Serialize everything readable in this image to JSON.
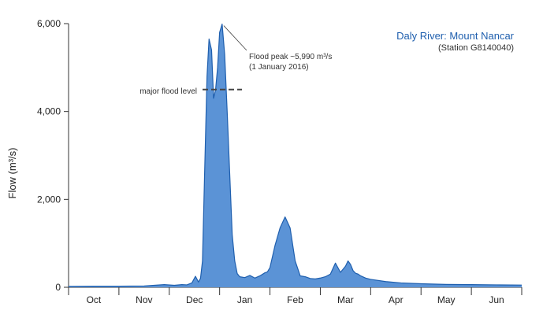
{
  "colors": {
    "fill": "#5b93d6",
    "line": "#1f5fae",
    "axis": "#333333",
    "title": "#1f5fae",
    "annotation": "#333333"
  },
  "chart_data": {
    "type": "area",
    "title": "Daly River: Mount Nancar",
    "subtitle": "(Station G8140040)",
    "xlabel": "",
    "ylabel": "Flow (m³/s)",
    "ylim": [
      0,
      6000
    ],
    "yticks": [
      0,
      2000,
      4000,
      6000
    ],
    "ytick_labels": [
      "0",
      "2,000",
      "4,000",
      "6,000"
    ],
    "xlim": [
      0,
      9
    ],
    "months": [
      "Oct",
      "Nov",
      "Dec",
      "Jan",
      "Feb",
      "Mar",
      "Apr",
      "May",
      "Jun"
    ],
    "grid": false,
    "flood_level": {
      "value": 4500,
      "label": "major flood level"
    },
    "peak_annotation": {
      "x": 3.05,
      "value": 5990,
      "line1": "Flood peak ~5,990 m³/s",
      "line2": "(1 January 2016)"
    },
    "series": [
      {
        "name": "Flow",
        "x": [
          0,
          0.5,
          1,
          1.5,
          1.9,
          2.1,
          2.25,
          2.35,
          2.45,
          2.52,
          2.58,
          2.62,
          2.66,
          2.7,
          2.75,
          2.79,
          2.84,
          2.88,
          2.92,
          2.96,
          3.0,
          3.05,
          3.1,
          3.15,
          3.2,
          3.25,
          3.3,
          3.35,
          3.4,
          3.5,
          3.6,
          3.7,
          3.8,
          3.9,
          3.95,
          4.0,
          4.1,
          4.2,
          4.3,
          4.4,
          4.5,
          4.6,
          4.7,
          4.75,
          4.8,
          4.9,
          5.0,
          5.1,
          5.2,
          5.3,
          5.4,
          5.5,
          5.55,
          5.6,
          5.65,
          5.7,
          5.75,
          5.8,
          5.9,
          6.0,
          6.3,
          6.6,
          7.0,
          7.5,
          8.0,
          8.5,
          9.0
        ],
        "values": [
          20,
          25,
          25,
          30,
          60,
          45,
          60,
          55,
          100,
          250,
          120,
          200,
          600,
          2500,
          4800,
          5650,
          5400,
          4300,
          4500,
          5000,
          5800,
          5990,
          5300,
          4000,
          2600,
          1200,
          600,
          310,
          240,
          220,
          270,
          210,
          260,
          330,
          350,
          450,
          950,
          1350,
          1600,
          1350,
          600,
          260,
          240,
          220,
          200,
          190,
          210,
          240,
          300,
          550,
          340,
          480,
          600,
          520,
          380,
          320,
          300,
          260,
          210,
          180,
          130,
          100,
          80,
          65,
          60,
          55,
          50
        ]
      }
    ]
  }
}
